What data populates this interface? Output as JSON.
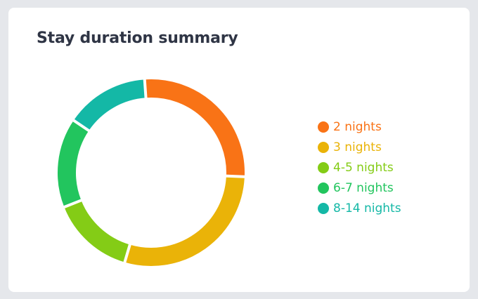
{
  "card": {
    "title": "Stay duration summary"
  },
  "chart_data": {
    "type": "pie",
    "variant": "donut",
    "categories": [
      "2 nights",
      "3 nights",
      "4-5 nights",
      "6-7 nights",
      "8-14 nights"
    ],
    "values": [
      26,
      28,
      14,
      15,
      14
    ],
    "colors": [
      "#f97316",
      "#eab308",
      "#84cc16",
      "#22c55e",
      "#14b8a6"
    ],
    "legend_position": "right"
  }
}
